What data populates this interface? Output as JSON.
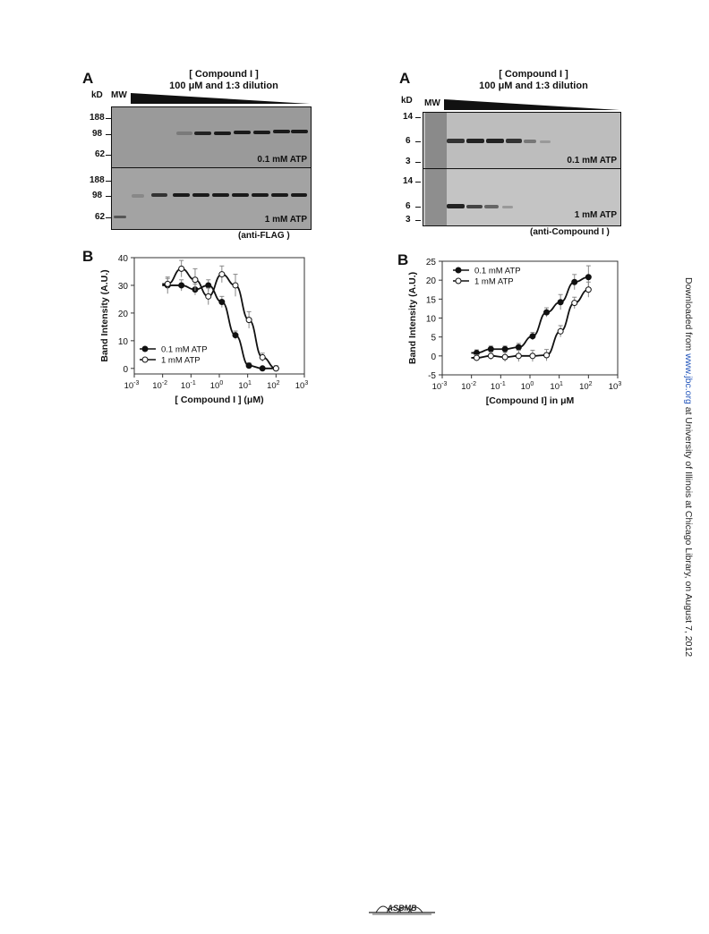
{
  "left": {
    "panel_a": {
      "letter": "A",
      "header_line1": "[ Compound I ]",
      "header_line2": "100 μM and 1:3 dilution",
      "kd_label": "kD",
      "mw_label": "MW",
      "upper_markers": [
        "188",
        "98",
        "62"
      ],
      "lower_markers": [
        "188",
        "98",
        "62"
      ],
      "upper_condition": "0.1 mM ATP",
      "lower_condition": "1 mM ATP",
      "antibody": "(anti-FLAG )"
    },
    "panel_b": {
      "letter": "B"
    }
  },
  "right": {
    "panel_a": {
      "letter": "A",
      "header_line1": "[ Compound I ]",
      "header_line2": "100 μM and 1:3 dilution",
      "kd_label": "kD",
      "mw_label": "MW",
      "upper_markers": [
        "14",
        "6",
        "3"
      ],
      "lower_markers": [
        "14",
        "6",
        "3"
      ],
      "upper_condition": "0.1 mM ATP",
      "lower_condition": "1 mM ATP",
      "antibody": "(anti-Compound I )"
    },
    "panel_b": {
      "letter": "B"
    }
  },
  "chart_data": [
    {
      "type": "scatter",
      "xscale": "log",
      "xlabel": "[ Compound I ] (μM)",
      "ylabel": "Band Intensity (A.U.)",
      "xlim": [
        0.001,
        1000
      ],
      "ylim": [
        -2,
        40
      ],
      "yticks": [
        0,
        10,
        20,
        30,
        40
      ],
      "xticks": [
        "10-3",
        "10-2",
        "10-1",
        "100",
        "101",
        "102",
        "103"
      ],
      "legend": "bottom-left",
      "series": [
        {
          "name": "0.1 mM ATP",
          "marker": "filled",
          "x": [
            0.015,
            0.046,
            0.14,
            0.41,
            1.23,
            3.7,
            11.1,
            33.3,
            100
          ],
          "y": [
            30,
            30,
            28.5,
            30,
            24,
            12,
            1,
            0,
            0
          ],
          "err": [
            3,
            2,
            2,
            2,
            2,
            1.5,
            1,
            0.5,
            0.5
          ]
        },
        {
          "name": "1 mM ATP",
          "marker": "open",
          "x": [
            0.015,
            0.046,
            0.14,
            0.41,
            1.23,
            3.7,
            11.1,
            33.3,
            100
          ],
          "y": [
            30.5,
            36,
            32,
            26,
            34,
            30,
            17.5,
            4,
            0
          ],
          "err": [
            2,
            3,
            4,
            3,
            3,
            4,
            3,
            1.5,
            1
          ]
        }
      ]
    },
    {
      "type": "scatter",
      "xscale": "log",
      "xlabel": "[Compound I] in μM",
      "ylabel": "Band Intensity (A.U.)",
      "xlim": [
        0.001,
        1000
      ],
      "ylim": [
        -5,
        25
      ],
      "yticks": [
        -5,
        0,
        5,
        10,
        15,
        20,
        25
      ],
      "xticks": [
        "10-3",
        "10-2",
        "10-1",
        "100",
        "101",
        "102",
        "103"
      ],
      "legend": "top-left",
      "series": [
        {
          "name": "0.1 mM ATP",
          "marker": "filled",
          "x": [
            0.015,
            0.046,
            0.14,
            0.41,
            1.23,
            3.7,
            11.1,
            33.3,
            100
          ],
          "y": [
            0.8,
            1.8,
            1.8,
            2.3,
            5.2,
            11.5,
            14.2,
            19.5,
            20.8
          ],
          "err": [
            0.8,
            0.8,
            0.8,
            1,
            1,
            1.2,
            2,
            2,
            3
          ]
        },
        {
          "name": "1 mM ATP",
          "marker": "open",
          "x": [
            0.015,
            0.046,
            0.14,
            0.41,
            1.23,
            3.7,
            11.1,
            33.3,
            100
          ],
          "y": [
            -0.5,
            0,
            -0.3,
            0,
            0,
            0.2,
            6.5,
            14,
            17.5
          ],
          "err": [
            0.8,
            1,
            1.2,
            1.5,
            1.5,
            1.5,
            1.5,
            1.5,
            2
          ]
        }
      ]
    }
  ],
  "sidebar": {
    "prefix": "Downloaded from ",
    "link": "www.jbc.org",
    "suffix": " at University of Illinois at Chicago Library, on August 7, 2012"
  },
  "footer": {
    "logo_text": "ASBMB"
  }
}
